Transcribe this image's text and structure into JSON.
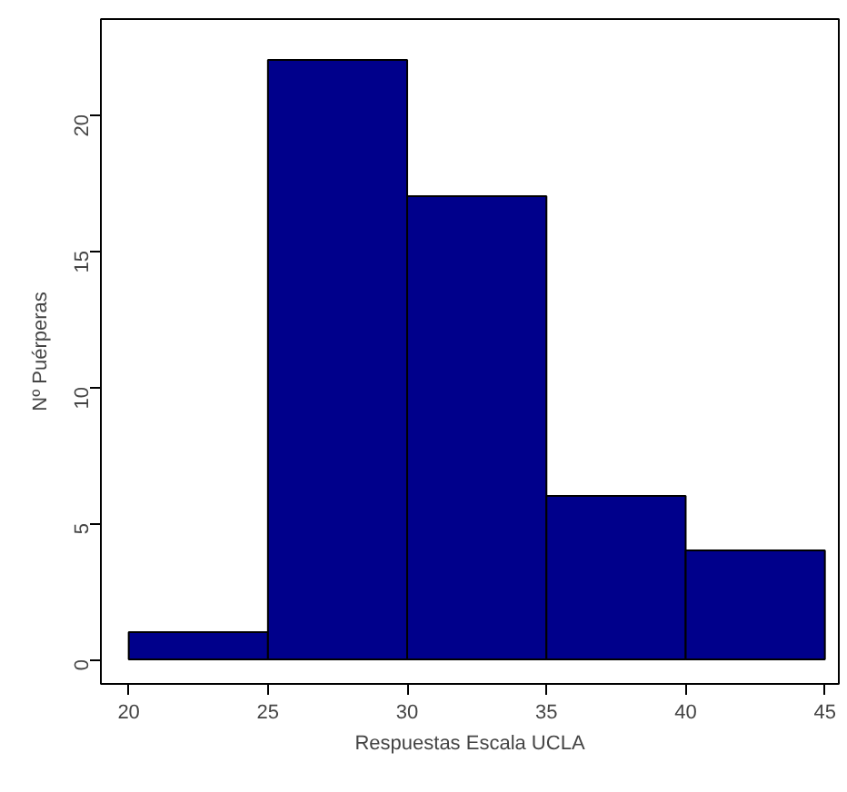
{
  "chart_data": {
    "type": "histogram",
    "xlabel": "Respuestas Escala UCLA",
    "ylabel": "Nº Puérperas",
    "bins": [
      20,
      25,
      30,
      35,
      40,
      45
    ],
    "values": [
      1,
      22,
      17,
      6,
      4
    ],
    "color": "#00008b",
    "xlim": [
      19,
      45.5
    ],
    "ylim": [
      -0.9,
      23.5
    ],
    "xticks": [
      20,
      25,
      30,
      35,
      40,
      45
    ],
    "yticks": [
      0,
      5,
      10,
      15,
      20
    ],
    "grid": false
  }
}
